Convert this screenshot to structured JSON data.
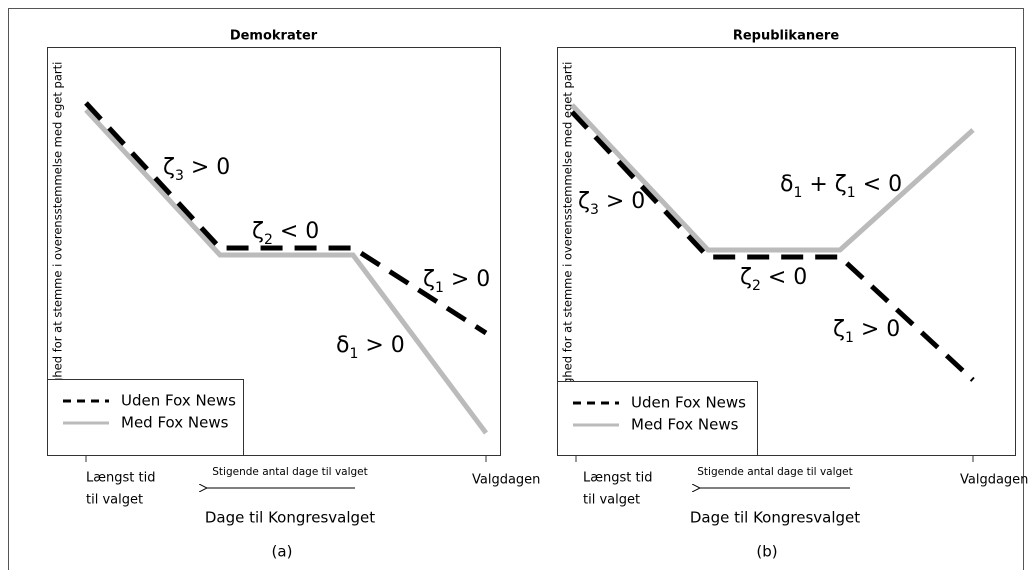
{
  "panels": [
    {
      "title": "Demokrater",
      "y_label": "Sandsynlighed for at stemme i overensstemmelse med eget parti",
      "legend": [
        "Uden Fox News",
        "Med Fox News"
      ],
      "annotations": [
        [
          {
            "t": "ζ"
          },
          {
            "sub": "3"
          },
          {
            "t": " > 0"
          }
        ],
        [
          {
            "t": "ζ"
          },
          {
            "sub": "2"
          },
          {
            "t": " < 0"
          }
        ],
        [
          {
            "t": "ζ"
          },
          {
            "sub": "1"
          },
          {
            "t": " > 0"
          }
        ],
        [
          {
            "t": "δ"
          },
          {
            "sub": "1"
          },
          {
            "t": " > 0"
          }
        ]
      ],
      "x_left": [
        "Længst tid",
        "til valget"
      ],
      "x_right": "Valgdagen",
      "arrow_label": "Stigende antal dage til valget",
      "x_label": "Dage til Kongresvalget",
      "caption": "(a)"
    },
    {
      "title": "Republikanere",
      "y_label": "Sandsynlighed for at stemme i overensstemmelse med eget parti",
      "legend": [
        "Uden Fox News",
        "Med Fox News"
      ],
      "annotations": [
        [
          {
            "t": "ζ"
          },
          {
            "sub": "3"
          },
          {
            "t": " > 0"
          }
        ],
        [
          {
            "t": "δ"
          },
          {
            "sub": "1"
          },
          {
            "t": " + ζ"
          },
          {
            "sub": "1"
          },
          {
            "t": " < 0"
          }
        ],
        [
          {
            "t": "ζ"
          },
          {
            "sub": "2"
          },
          {
            "t": " < 0"
          }
        ],
        [
          {
            "t": "ζ"
          },
          {
            "sub": "1"
          },
          {
            "t": " > 0"
          }
        ]
      ],
      "x_left": [
        "Længst tid",
        "til valget"
      ],
      "x_right": "Valgdagen",
      "arrow_label": "Stigende antal dage til valget",
      "x_label": "Dage til Kongresvalget",
      "caption": "(b)"
    }
  ]
}
